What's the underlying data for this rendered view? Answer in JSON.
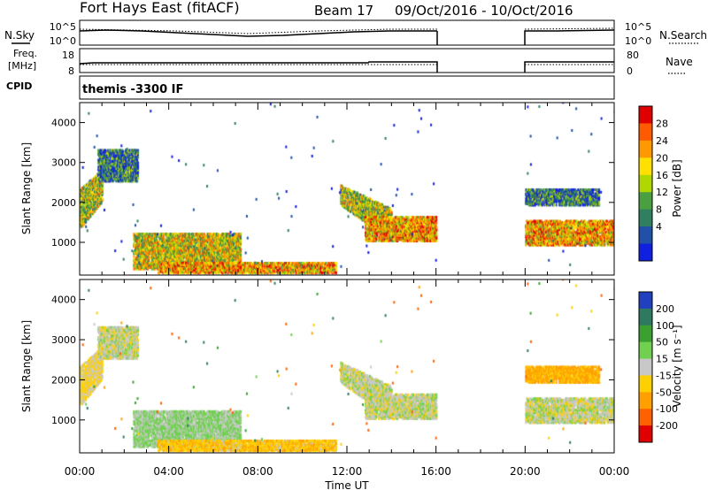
{
  "header": {
    "site": "Fort Hays East (fitACF)",
    "beam": "Beam 17",
    "dates": "09/Oct/2016 - 10/Oct/2016"
  },
  "sky_panel": {
    "left_label": "N.Sky",
    "right_label": "N.Search",
    "left_ticks": [
      "10^5",
      "10^0"
    ],
    "right_ticks": [
      "10^5",
      "10^0"
    ]
  },
  "freq_panel": {
    "left_label_line1": "Freq.",
    "left_label_line2": "[MHz]",
    "right_label": "Nave",
    "left_ticks": [
      "18",
      "8"
    ],
    "right_ticks": [
      "80",
      "0"
    ]
  },
  "cpid": {
    "label": "CPID",
    "program": "themis -3300 IF"
  },
  "axes": {
    "ylabel": "Slant Range [km]",
    "xlabel": "Time UT",
    "y_ticks": [
      "1000",
      "2000",
      "3000",
      "4000"
    ],
    "x_ticks": [
      "00:00",
      "04:00",
      "08:00",
      "12:00",
      "16:00",
      "20:00",
      "00:00"
    ]
  },
  "power_colorbar": {
    "label": "Power [dB]",
    "ticks": [
      "28",
      "24",
      "20",
      "16",
      "12",
      "8",
      "4"
    ],
    "colors": [
      "#e00000",
      "#ff5a00",
      "#ff9900",
      "#ffe000",
      "#b0d800",
      "#4aa040",
      "#2e8060",
      "#2050a8",
      "#1020e0"
    ]
  },
  "velocity_colorbar": {
    "label": "Velocity [m s⁻¹]",
    "ticks": [
      "200",
      "100",
      "50",
      "15",
      "-15",
      "-50",
      "-100",
      "-200"
    ],
    "colors": [
      "#2040c0",
      "#2e7a60",
      "#3aa030",
      "#70d050",
      "#c8c8c8",
      "#ffd000",
      "#ffa000",
      "#ff6000",
      "#e00000"
    ]
  },
  "chart_data": {
    "type": "heatmap",
    "x_unit": "hours UT since 09/Oct/2016 00:00",
    "xlim": [
      0,
      24
    ],
    "ylim": [
      180,
      4500
    ],
    "data_gap": [
      16,
      20
    ],
    "regions": [
      {
        "name": "early arc",
        "t": [
          0.0,
          1.0
        ],
        "r_start": [
          1300,
          2300
        ],
        "r_end": [
          2000,
          2800
        ],
        "power_mean": 16,
        "velocity": -20
      },
      {
        "name": "high echoes",
        "t": [
          0.8,
          2.6
        ],
        "r": [
          2500,
          3300
        ],
        "power_mean": 8,
        "velocity": 0
      },
      {
        "name": "evening band",
        "t": [
          2.4,
          7.2
        ],
        "r": [
          300,
          1200
        ],
        "power_mean": 18,
        "velocity": 20
      },
      {
        "name": "near range trace",
        "t": [
          3.5,
          11.5
        ],
        "r": [
          200,
          450
        ],
        "power_mean": 22,
        "velocity": -40
      },
      {
        "name": "descending arc",
        "t": [
          11.7,
          14.0
        ],
        "r_start": [
          1900,
          2400
        ],
        "r_end": [
          1000,
          1800
        ],
        "power_mean": 16,
        "velocity": 0
      },
      {
        "name": "morning band",
        "t": [
          12.8,
          16.0
        ],
        "r": [
          1000,
          1600
        ],
        "power_mean": 22,
        "velocity": 0
      },
      {
        "name": "late band",
        "t": [
          20.0,
          24.0
        ],
        "r": [
          900,
          1500
        ],
        "power_mean": 22,
        "velocity": 0
      },
      {
        "name": "late upper band",
        "t": [
          20.0,
          23.3
        ],
        "r": [
          1900,
          2300
        ],
        "power_mean": 8,
        "velocity": -60
      }
    ]
  }
}
